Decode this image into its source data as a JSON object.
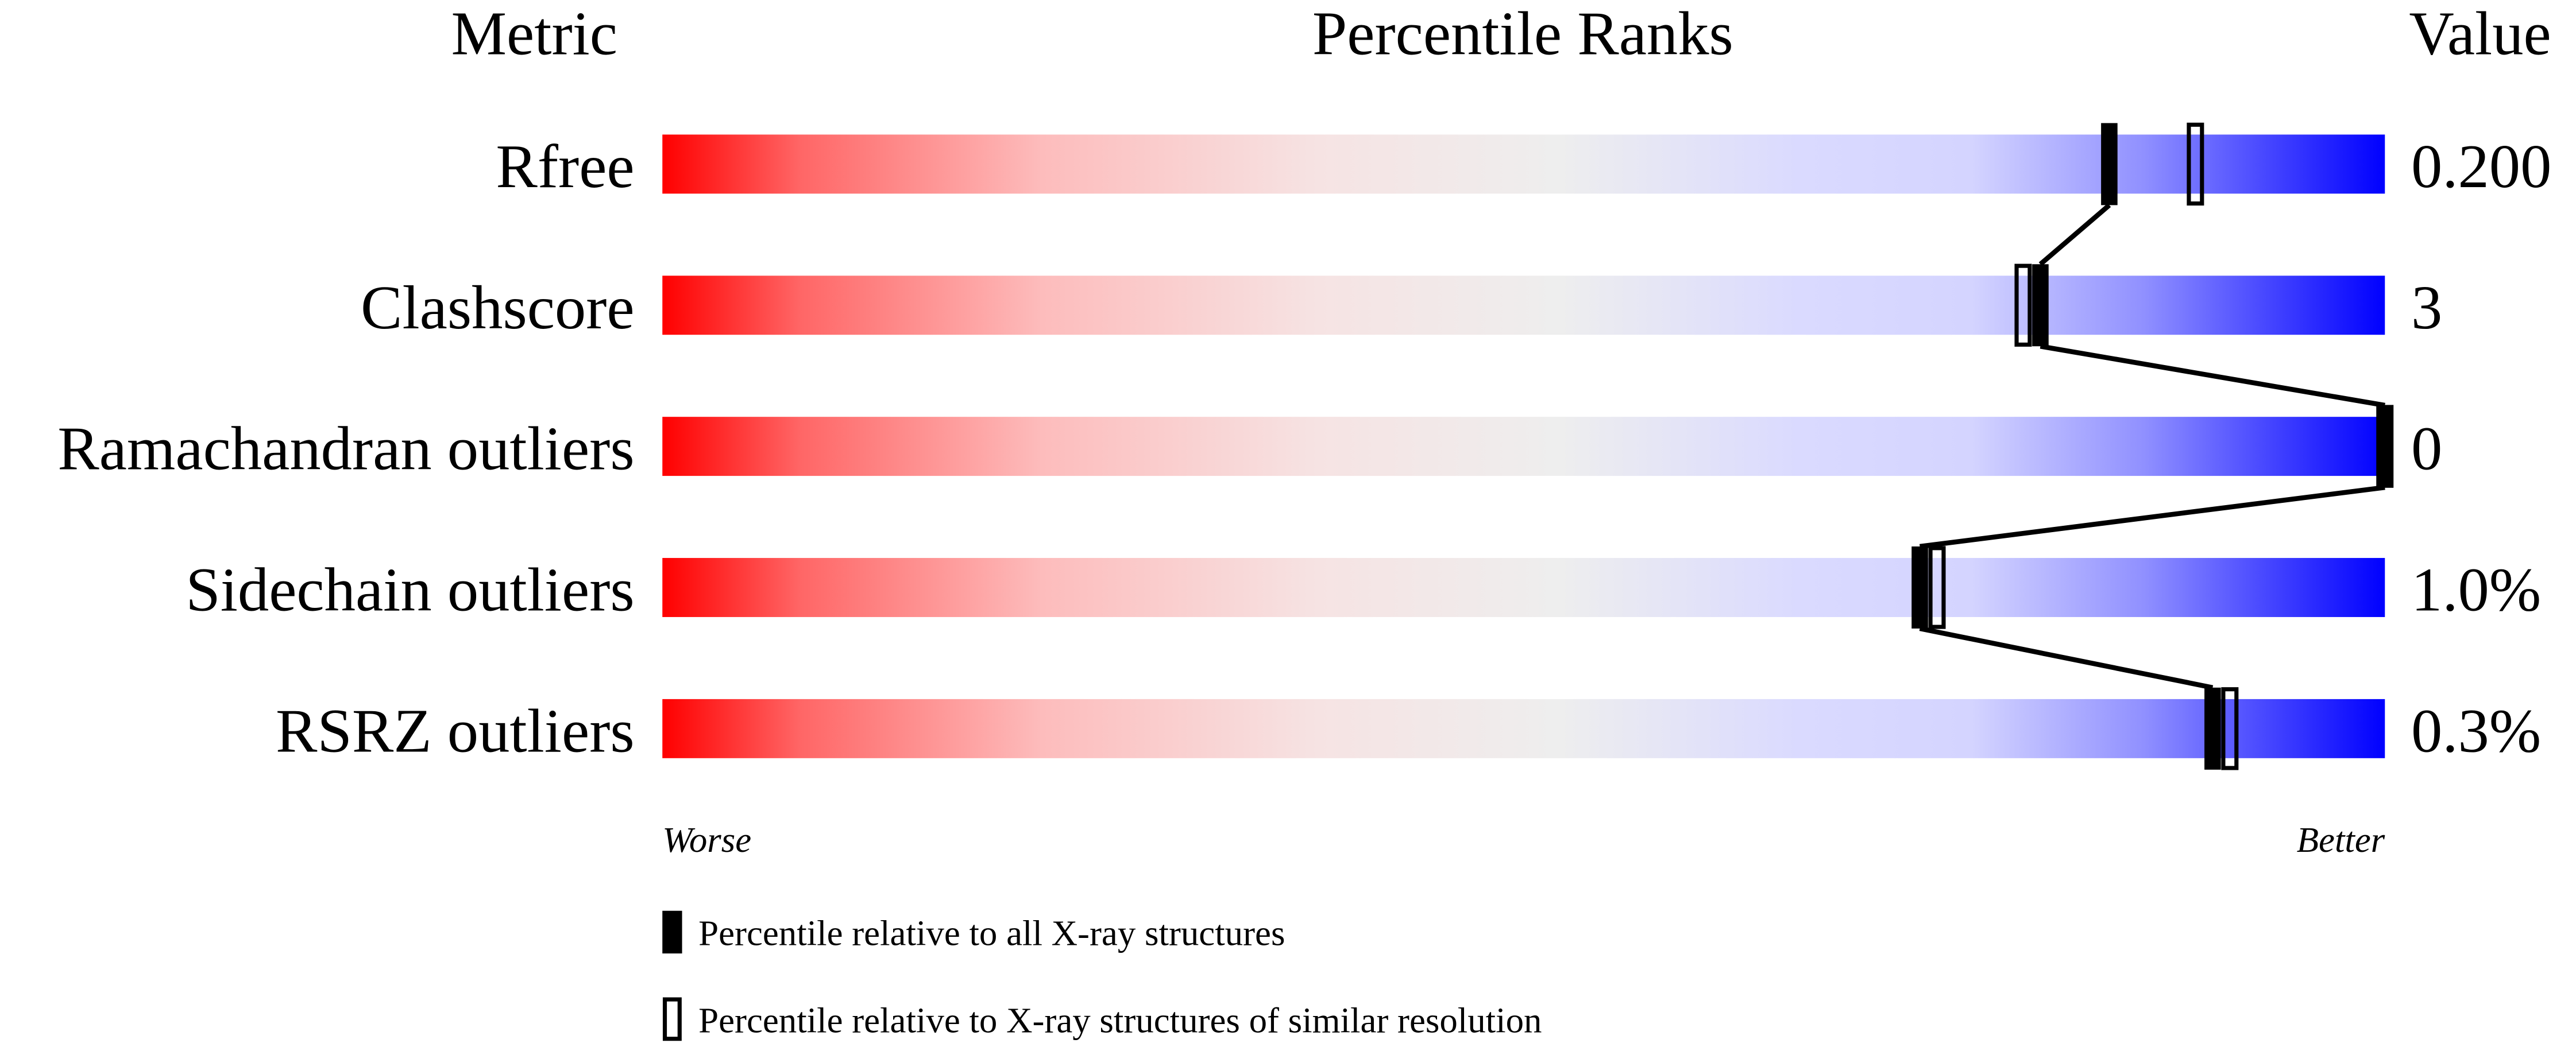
{
  "chart_data": {
    "type": "percentile-slider",
    "headers": {
      "metric": "Metric",
      "ranks": "Percentile Ranks",
      "value": "Value"
    },
    "xlim": [
      0,
      100
    ],
    "metrics": [
      {
        "name": "Rfree",
        "value": "0.200",
        "percentile_all": 84,
        "percentile_similar": 89
      },
      {
        "name": "Clashscore",
        "value": "3",
        "percentile_all": 80,
        "percentile_similar": 79
      },
      {
        "name": "Ramachandran outliers",
        "value": "0",
        "percentile_all": 100,
        "percentile_similar": 100
      },
      {
        "name": "Sidechain outliers",
        "value": "1.0%",
        "percentile_all": 73,
        "percentile_similar": 74
      },
      {
        "name": "RSRZ outliers",
        "value": "0.3%",
        "percentile_all": 90,
        "percentile_similar": 91
      }
    ],
    "axis_labels": {
      "left": "Worse",
      "right": "Better"
    },
    "legend": {
      "all": "Percentile relative to all X-ray structures",
      "similar": "Percentile relative to X-ray structures of similar resolution"
    },
    "colors": {
      "worse": "#ff0000",
      "middle": "#eeeeee",
      "better": "#0000ff",
      "marker": "#000000"
    }
  }
}
